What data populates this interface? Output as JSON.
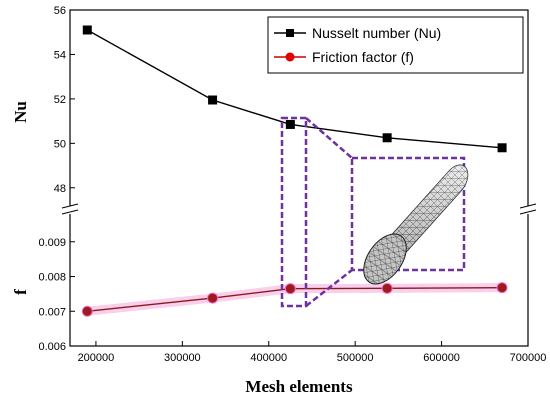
{
  "chart_data": {
    "type": "line",
    "xlabel": "Mesh elements",
    "xlim": [
      170000,
      700000
    ],
    "xticks": [
      200000,
      300000,
      400000,
      500000,
      600000,
      700000
    ],
    "panels": [
      {
        "ylabel": "Nu",
        "ylim": [
          47,
          56
        ],
        "yticks": [
          48,
          50,
          52,
          54,
          56
        ]
      },
      {
        "ylabel": "f",
        "ylim": [
          0.006,
          0.0098
        ],
        "yticks": [
          0.006,
          0.007,
          0.008,
          0.009
        ]
      }
    ],
    "x": [
      190000,
      335000,
      425000,
      537000,
      670000
    ],
    "series": [
      {
        "name": "Nusselt number (Nu)",
        "panel": 0,
        "color": "#000000",
        "marker": "square",
        "values": [
          55.1,
          51.95,
          50.85,
          50.25,
          49.8
        ]
      },
      {
        "name": "Friction factor (f)",
        "panel": 1,
        "color": "#cc0000",
        "marker": "circle",
        "values": [
          0.007,
          0.00738,
          0.00765,
          0.00766,
          0.00768
        ]
      }
    ],
    "legend_position": "top-right",
    "annotation": {
      "type": "zoom-inset",
      "target_x": 425000,
      "color": "#7030a0",
      "content": "mesh-cylinder-image"
    }
  }
}
